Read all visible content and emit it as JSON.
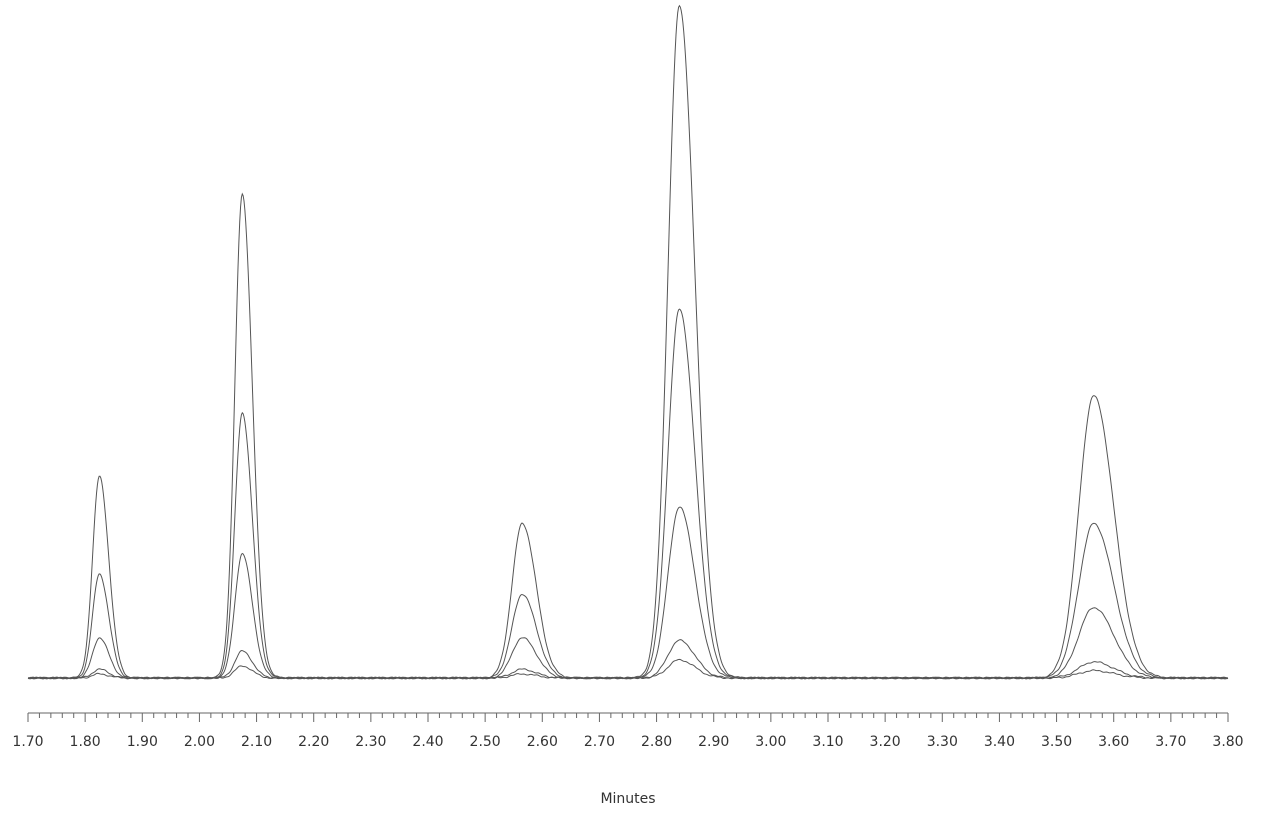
{
  "chart_data": {
    "type": "line",
    "title": "",
    "xlabel": "Minutes",
    "ylabel": "",
    "xlim": [
      1.7,
      3.8
    ],
    "ylim": [
      0,
      100
    ],
    "x_ticks": [
      "1.70",
      "1.80",
      "1.90",
      "2.00",
      "2.10",
      "2.20",
      "2.30",
      "2.40",
      "2.50",
      "2.60",
      "2.70",
      "2.80",
      "2.90",
      "3.00",
      "3.10",
      "3.20",
      "3.30",
      "3.40",
      "3.50",
      "3.60",
      "3.70",
      "3.80"
    ],
    "x_minor_step": 0.02,
    "grid": false,
    "legend": "none",
    "line_color": "#555555",
    "axis_color": "#666666",
    "peak_retention_times": [
      1.825,
      2.075,
      2.565,
      2.84,
      3.565
    ],
    "peak_widths": [
      0.012,
      0.013,
      0.018,
      0.02,
      0.026
    ],
    "series": [
      {
        "heights": [
          30,
          72,
          23,
          100,
          42
        ]
      },
      {
        "heights": [
          15.5,
          39.5,
          12.5,
          55,
          23
        ]
      },
      {
        "heights": [
          6,
          18.5,
          6,
          25.5,
          10.5
        ]
      },
      {
        "heights": [
          1.3,
          4,
          1.3,
          5.6,
          2.4
        ]
      },
      {
        "heights": [
          0.6,
          1.8,
          0.6,
          2.7,
          1.1
        ]
      }
    ]
  }
}
